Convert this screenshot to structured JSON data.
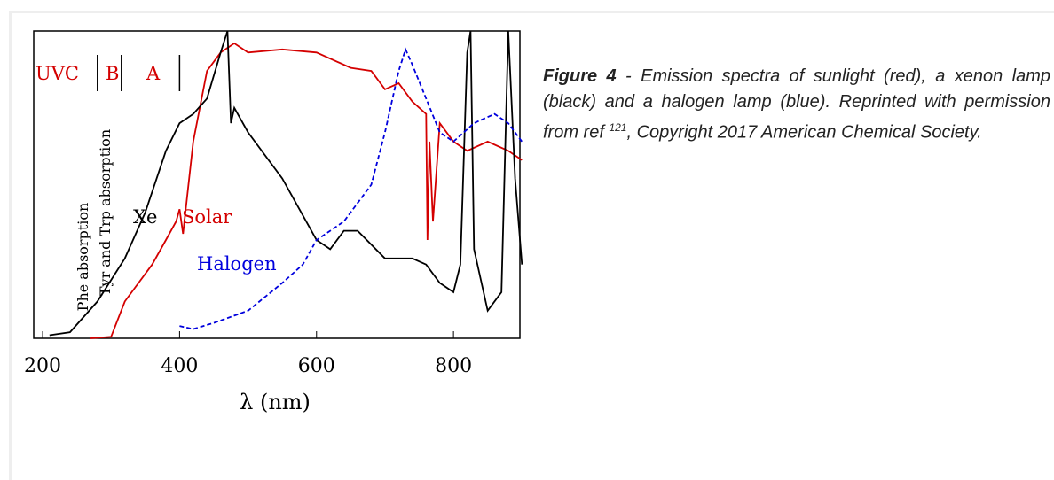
{
  "chart_data": {
    "type": "line",
    "xlabel": "λ (nm)",
    "xlim": [
      187,
      897
    ],
    "xticks": [
      200,
      400,
      600,
      800
    ],
    "ylim": [
      0,
      100
    ],
    "band_edges": [
      280,
      315,
      400
    ],
    "annotations": [
      {
        "text": "UVC",
        "color": "#d40000"
      },
      {
        "text": "B",
        "color": "#d40000"
      },
      {
        "text": "A",
        "color": "#d40000"
      },
      {
        "text": "Xe",
        "color": "#000000"
      },
      {
        "text": "Solar",
        "color": "#d40000"
      },
      {
        "text": "Halogen",
        "color": "#0000dd"
      },
      {
        "text": "Phe absorption",
        "color": "#000000"
      },
      {
        "text": "Tyr and Trp absorption",
        "color": "#000000"
      }
    ],
    "series": [
      {
        "name": "Solar",
        "color": "#d40000",
        "dash": false,
        "x": [
          270,
          300,
          320,
          340,
          360,
          380,
          395,
          400,
          405,
          420,
          440,
          460,
          480,
          500,
          550,
          600,
          650,
          680,
          700,
          720,
          740,
          760,
          762,
          765,
          770,
          780,
          800,
          820,
          850,
          880,
          900
        ],
        "values": [
          0,
          0.5,
          12,
          18,
          24,
          32,
          38,
          42,
          34,
          64,
          87,
          93,
          96,
          93,
          94,
          93,
          88,
          87,
          81,
          83,
          77,
          73,
          32,
          64,
          38,
          70,
          64,
          61,
          64,
          61,
          58
        ]
      },
      {
        "name": "Xe",
        "color": "#000000",
        "dash": false,
        "x": [
          210,
          240,
          280,
          320,
          350,
          380,
          400,
          420,
          440,
          460,
          470,
          475,
          480,
          500,
          550,
          600,
          620,
          640,
          660,
          700,
          740,
          760,
          780,
          800,
          810,
          820,
          825,
          830,
          850,
          870,
          880,
          890,
          900
        ],
        "values": [
          1,
          2,
          12,
          26,
          41,
          61,
          70,
          73,
          78,
          93,
          100,
          70,
          75,
          67,
          52,
          32,
          29,
          35,
          35,
          26,
          26,
          24,
          18,
          15,
          24,
          93,
          100,
          29,
          9,
          15,
          100,
          52,
          24
        ]
      },
      {
        "name": "Halogen",
        "color": "#0000dd",
        "dash": true,
        "x": [
          400,
          420,
          450,
          500,
          550,
          580,
          600,
          620,
          640,
          680,
          700,
          720,
          730,
          740,
          760,
          780,
          800,
          830,
          860,
          880,
          900
        ],
        "values": [
          4,
          3,
          5,
          9,
          18,
          24,
          32,
          35,
          38,
          50,
          67,
          87,
          94,
          89,
          78,
          67,
          64,
          70,
          73,
          70,
          64
        ]
      }
    ]
  },
  "caption": {
    "label": "Figure 4",
    "text": " - Emission spectra of sunlight (red), a xenon lamp (black) and a halogen lamp (blue). Reprinted with permission from ref ",
    "ref": "121",
    "tail": ", Copyright 2017 American Chemical Society."
  }
}
